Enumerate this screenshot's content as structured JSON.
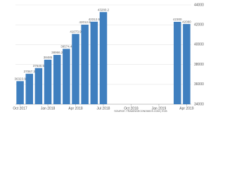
{
  "chart_data": {
    "type": "bar",
    "categories": [
      "Oct 2017",
      null,
      null,
      "Jan 2018",
      null,
      null,
      "Apr 2018",
      null,
      null,
      "Jul 2018",
      null,
      null,
      "Oct 2018",
      null,
      null,
      "Jan 2019",
      null,
      null,
      "Apr 2019"
    ],
    "values": [
      36323.9,
      37067.3,
      37640.5,
      38485,
      38966.2,
      39574.4,
      41073.9,
      42012.8,
      42312.9,
      43280.2,
      null,
      null,
      null,
      null,
      null,
      null,
      null,
      42300,
      42080
    ],
    "color": "#3f7fbf",
    "ylim": [
      34000,
      44000
    ],
    "yticks": [
      34000,
      36000,
      38000,
      40000,
      42000,
      44000
    ],
    "grid": true,
    "source": "SOURCE: TRADINGECONOMICS.COM | ECB"
  }
}
